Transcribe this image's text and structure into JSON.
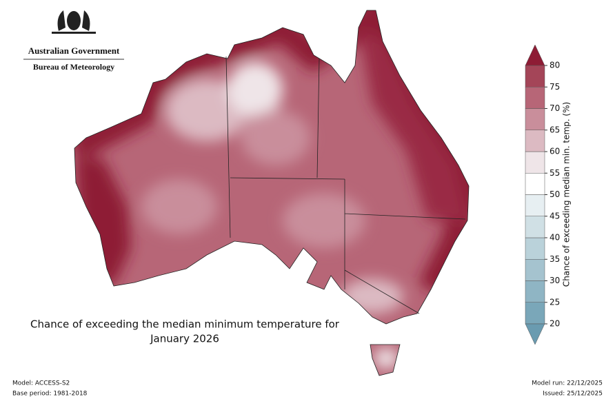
{
  "logo": {
    "line1": "Australian Government",
    "line2": "Bureau of Meteorology"
  },
  "title_lines": [
    "Chance of exceeding the median minimum temperature for",
    "January 2026"
  ],
  "footer": {
    "model": "Model: ACCESS-S2",
    "base_period": "Base period: 1981-2018",
    "model_run": "Model run: 22/12/2025",
    "issued": "Issued: 25/12/2025"
  },
  "colorbar": {
    "label": "Chance of exceeding median min. temp. (%)",
    "ticks": [
      20,
      25,
      30,
      35,
      40,
      45,
      50,
      55,
      60,
      65,
      70,
      75,
      80
    ],
    "colors": [
      "#7aa7b9",
      "#8fb5c4",
      "#a5c3cf",
      "#bad2da",
      "#d0e0e5",
      "#e7eff2",
      "#ffffff",
      "#efe5e8",
      "#dcbac2",
      "#c98e9b",
      "#b76677",
      "#a44558"
    ],
    "under_color": "#6a9bb0",
    "over_color": "#8e1c35"
  }
}
